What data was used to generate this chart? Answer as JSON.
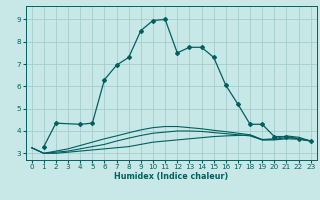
{
  "xlabel": "Humidex (Indice chaleur)",
  "xlim": [
    -0.5,
    23.5
  ],
  "ylim": [
    2.7,
    9.6
  ],
  "xticks": [
    0,
    1,
    2,
    3,
    4,
    5,
    6,
    7,
    8,
    9,
    10,
    11,
    12,
    13,
    14,
    15,
    16,
    17,
    18,
    19,
    20,
    21,
    22,
    23
  ],
  "yticks": [
    3,
    4,
    5,
    6,
    7,
    8,
    9
  ],
  "bg_color": "#c8e8e8",
  "grid_color": "#9ec8c8",
  "line_color": "#006060",
  "figsize": [
    3.2,
    2.0
  ],
  "dpi": 100,
  "lines": [
    {
      "x": [
        1,
        2,
        4,
        5,
        6,
        7,
        8,
        9,
        10,
        11,
        12,
        13,
        14,
        15,
        16,
        17,
        18,
        19,
        20,
        21,
        22,
        23
      ],
      "y": [
        3.3,
        4.35,
        4.3,
        4.35,
        6.3,
        6.95,
        7.3,
        8.5,
        8.95,
        9.0,
        7.5,
        7.75,
        7.75,
        7.3,
        6.05,
        5.2,
        4.3,
        4.3,
        3.75,
        3.75,
        3.65,
        3.55
      ],
      "marker": true,
      "lw": 0.9
    },
    {
      "x": [
        0,
        1,
        2,
        3,
        4,
        5,
        6,
        7,
        8,
        9,
        10,
        11,
        12,
        13,
        14,
        15,
        16,
        17,
        18,
        19,
        20,
        21,
        22,
        23
      ],
      "y": [
        3.25,
        3.0,
        3.0,
        3.05,
        3.1,
        3.15,
        3.2,
        3.25,
        3.3,
        3.4,
        3.5,
        3.55,
        3.6,
        3.65,
        3.7,
        3.75,
        3.78,
        3.8,
        3.82,
        3.6,
        3.6,
        3.65,
        3.63,
        3.55
      ],
      "marker": false,
      "lw": 0.8
    },
    {
      "x": [
        0,
        1,
        2,
        3,
        4,
        5,
        6,
        7,
        8,
        9,
        10,
        11,
        12,
        13,
        14,
        15,
        16,
        17,
        18,
        19,
        20,
        21,
        22,
        23
      ],
      "y": [
        3.25,
        3.0,
        3.05,
        3.1,
        3.2,
        3.3,
        3.4,
        3.55,
        3.68,
        3.8,
        3.9,
        3.95,
        4.0,
        4.0,
        3.98,
        3.93,
        3.88,
        3.83,
        3.78,
        3.6,
        3.62,
        3.7,
        3.67,
        3.55
      ],
      "marker": false,
      "lw": 0.8
    },
    {
      "x": [
        0,
        1,
        2,
        3,
        4,
        5,
        6,
        7,
        8,
        9,
        10,
        11,
        12,
        13,
        14,
        15,
        16,
        17,
        18,
        19,
        20,
        21,
        22,
        23
      ],
      "y": [
        3.25,
        3.0,
        3.1,
        3.2,
        3.35,
        3.5,
        3.65,
        3.78,
        3.92,
        4.05,
        4.15,
        4.2,
        4.2,
        4.15,
        4.1,
        4.03,
        3.97,
        3.9,
        3.83,
        3.62,
        3.65,
        3.78,
        3.72,
        3.55
      ],
      "marker": false,
      "lw": 0.8
    }
  ]
}
